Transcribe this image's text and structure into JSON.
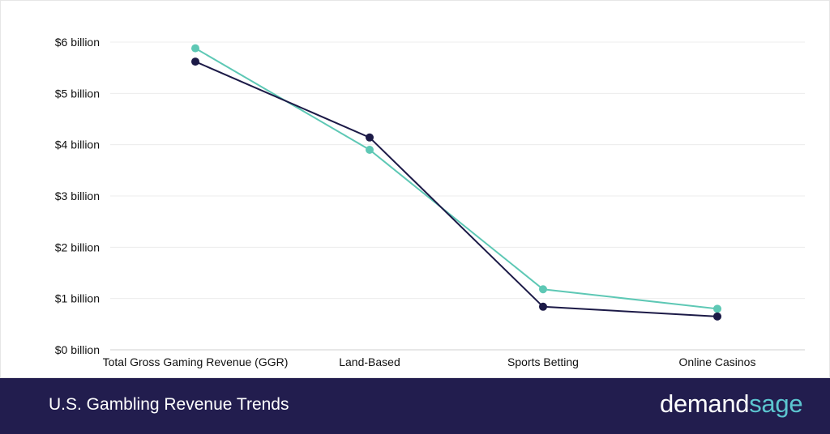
{
  "chart_data": {
    "type": "line",
    "title": "U.S. Gambling Revenue Trends",
    "categories": [
      "Total Gross Gaming Revenue (GGR)",
      "Land-Based",
      "Sports Betting",
      "Online Casinos"
    ],
    "y_ticks": [
      "$0 billion",
      "$1 billion",
      "$2 billion",
      "$3 billion",
      "$4 billion",
      "$5 billion",
      "$6 billion"
    ],
    "ylim": [
      0,
      6
    ],
    "y_unit": "billion USD",
    "grid": true,
    "legend": "none",
    "series": [
      {
        "color": "#5ec8b5",
        "values": [
          5.88,
          3.9,
          1.18,
          0.8
        ]
      },
      {
        "color": "#1c1a47",
        "values": [
          5.62,
          4.14,
          0.84,
          0.65
        ]
      }
    ]
  },
  "footer": {
    "title": "U.S. Gambling Revenue Trends"
  },
  "logo": {
    "part1": "demand",
    "part2": "sage"
  }
}
